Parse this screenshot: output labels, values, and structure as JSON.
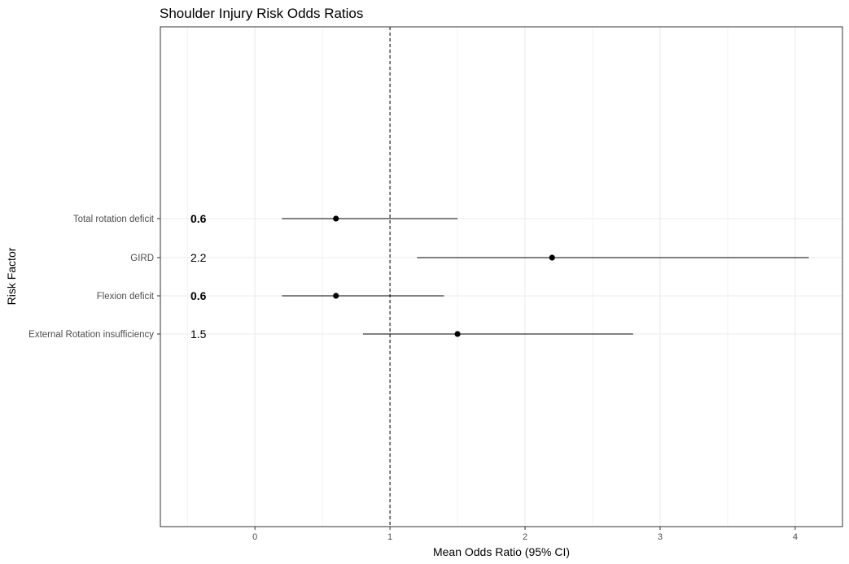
{
  "chart_data": {
    "type": "forest",
    "title": "Shoulder Injury Risk Odds Ratios",
    "xlabel": "Mean Odds Ratio (95% CI)",
    "ylabel": "Risk Factor",
    "xlim": [
      -0.7,
      4.35
    ],
    "x_ticks": [
      0,
      1,
      2,
      3,
      4
    ],
    "x_tick_labels": [
      "0",
      "1",
      "2",
      "3",
      "4"
    ],
    "reference_line": 1,
    "reference_line_style": "dashed",
    "grid": true,
    "categories": [
      "Total rotation deficit",
      "GIRD",
      "Flexion deficit",
      "External Rotation insufficiency"
    ],
    "estimates": [
      0.6,
      2.2,
      0.6,
      1.5
    ],
    "ci_lower": [
      0.2,
      1.2,
      0.2,
      0.8
    ],
    "ci_upper": [
      1.5,
      4.1,
      1.4,
      2.8
    ],
    "value_labels": [
      "0.6",
      "2.2",
      "0.6",
      "1.5"
    ],
    "value_label_bold": [
      true,
      false,
      true,
      false
    ],
    "colors": {
      "points": "#000000",
      "grid": "#ebebeb",
      "panel_border": "#333333"
    }
  }
}
